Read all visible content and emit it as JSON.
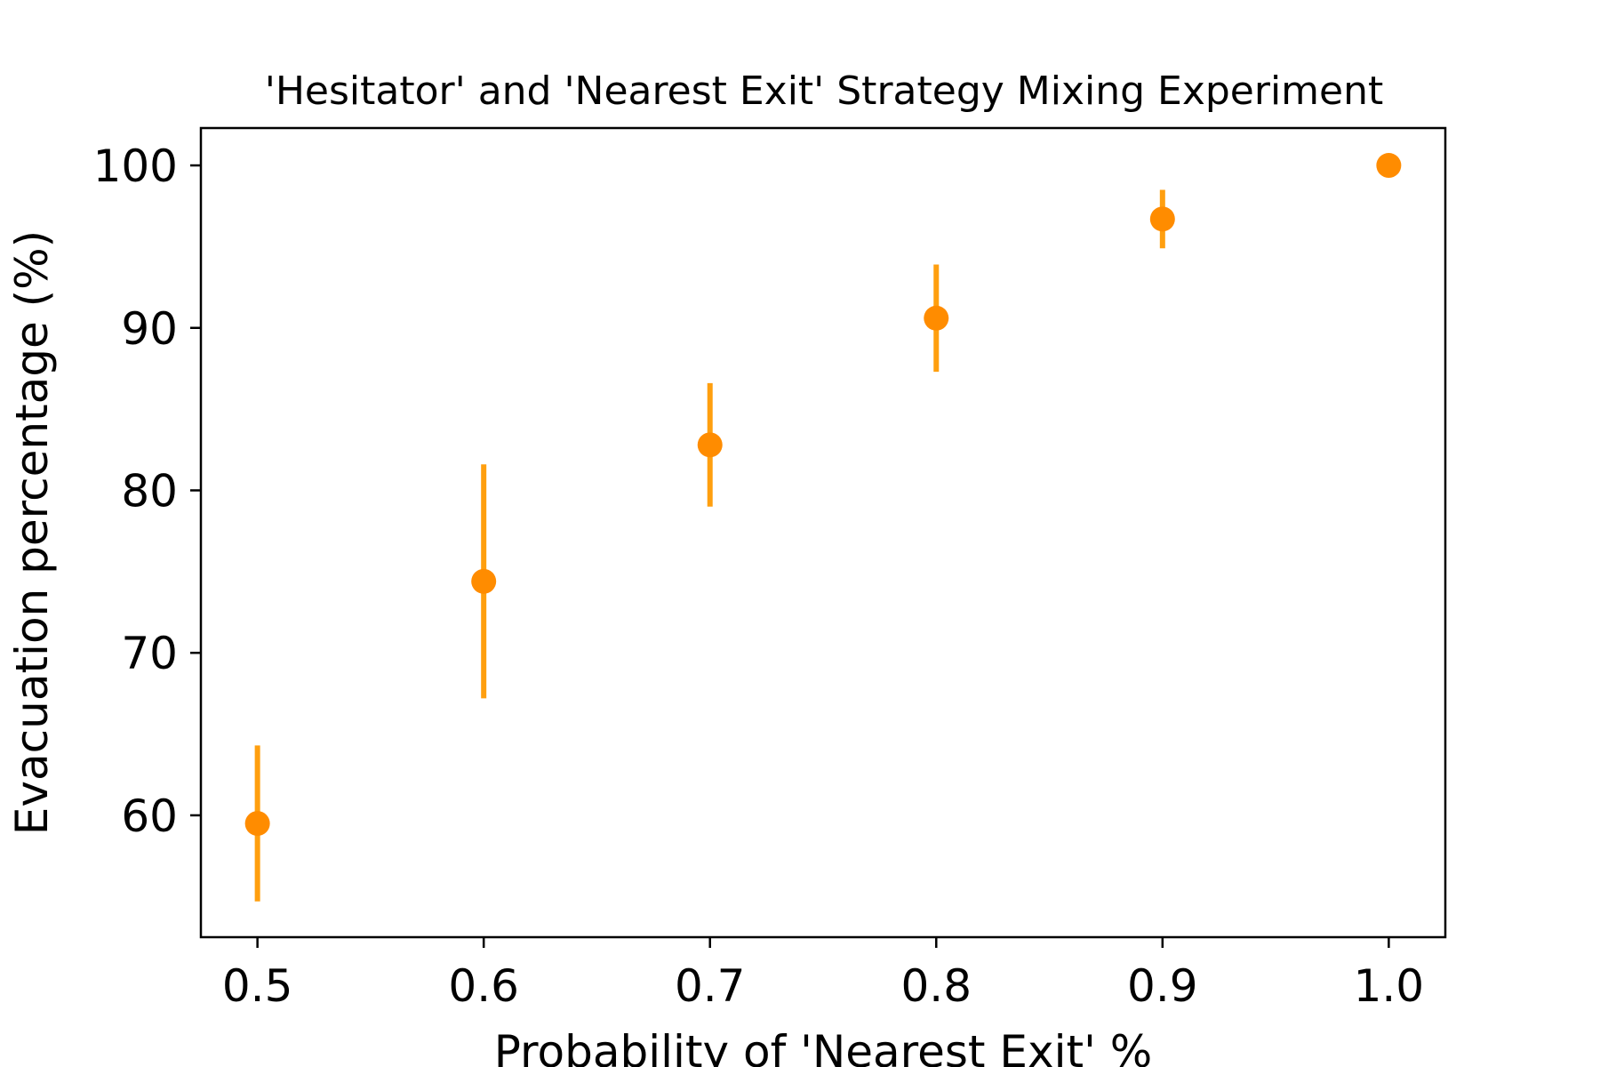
{
  "chart_data": {
    "type": "scatter",
    "title": "'Hesitator' and 'Nearest Exit' Strategy Mixing Experiment",
    "xlabel": "Probability of 'Nearest Exit' %",
    "ylabel": "Evacuation percentage (%)",
    "xlim": [
      0.475,
      1.025
    ],
    "ylim": [
      52.5,
      102.3
    ],
    "x_ticks": [
      0.5,
      0.6,
      0.7,
      0.8,
      0.9,
      1.0
    ],
    "x_tick_labels": [
      "0.5",
      "0.6",
      "0.7",
      "0.8",
      "0.9",
      "1.0"
    ],
    "y_ticks": [
      60,
      70,
      80,
      90,
      100
    ],
    "y_tick_labels": [
      "60",
      "70",
      "80",
      "90",
      "100"
    ],
    "grid": false,
    "series": [
      {
        "x": [
          0.5,
          0.6,
          0.7,
          0.8,
          0.9,
          1.0
        ],
        "y": [
          59.5,
          74.4,
          82.8,
          90.6,
          96.7,
          100.0
        ],
        "yerr_low": [
          54.7,
          67.2,
          79.0,
          87.3,
          94.9,
          100.0
        ],
        "yerr_high": [
          64.3,
          81.6,
          86.6,
          93.9,
          98.5,
          100.0
        ],
        "color": "#ff8c00",
        "errorbar_color": "#ff9f0f"
      }
    ]
  }
}
